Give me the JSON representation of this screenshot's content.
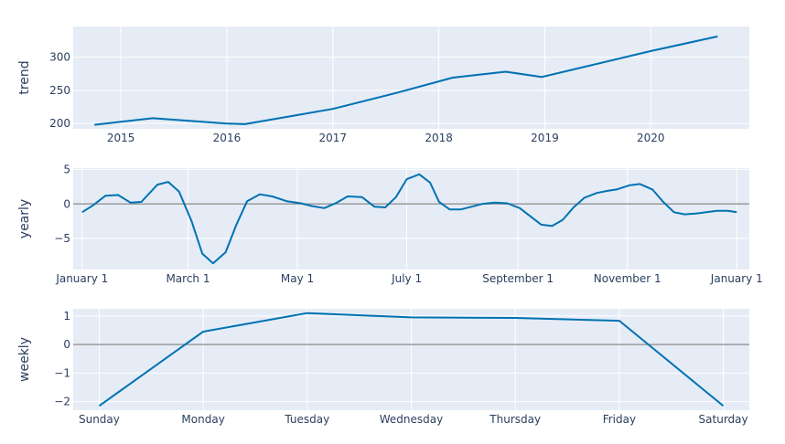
{
  "chart_data": [
    {
      "type": "line",
      "id": "trend",
      "ylabel": "trend",
      "x_kind": "year",
      "xlim": [
        2014.55,
        2020.93
      ],
      "ylim": [
        192,
        346
      ],
      "xticks": [
        2015,
        2016,
        2017,
        2018,
        2019,
        2020
      ],
      "xtick_labels": [
        "2015",
        "2016",
        "2017",
        "2018",
        "2019",
        "2020"
      ],
      "yticks": [
        200,
        250,
        300
      ],
      "ytick_labels": [
        "200",
        "250",
        "300"
      ],
      "zero_line": false,
      "series": [
        {
          "x": [
            2014.75,
            2015.3,
            2016.0,
            2016.17,
            2017.0,
            2017.6,
            2018.13,
            2018.63,
            2018.97,
            2019.5,
            2020.0,
            2020.63
          ],
          "y": [
            198,
            208,
            200,
            199,
            222,
            246,
            269,
            278,
            270,
            290,
            309,
            331
          ],
          "band": 1.5
        }
      ]
    },
    {
      "type": "line",
      "id": "yearly",
      "ylabel": "yearly",
      "x_kind": "day_of_year",
      "xlim": [
        -5,
        372
      ],
      "ylim": [
        -9.5,
        5.2
      ],
      "xticks": [
        0,
        59,
        120,
        181,
        243,
        304,
        365
      ],
      "xtick_labels": [
        "January  1",
        "March  1",
        "May  1",
        "July  1",
        "September  1",
        "November  1",
        "January  1"
      ],
      "yticks": [
        -5,
        0,
        5
      ],
      "ytick_labels": [
        "−5",
        "0",
        "5"
      ],
      "zero_line": true,
      "series": [
        {
          "x": [
            0,
            6,
            13,
            20,
            27,
            33,
            42,
            48,
            54,
            61,
            67,
            73,
            80,
            86,
            92,
            99,
            106,
            114,
            122,
            128,
            135,
            142,
            148,
            156,
            163,
            169,
            175,
            181,
            188,
            194,
            199,
            205,
            211,
            217,
            223,
            230,
            237,
            244,
            250,
            256,
            262,
            268,
            274,
            280,
            287,
            293,
            298,
            305,
            311,
            318,
            324,
            330,
            336,
            342,
            348,
            354,
            360,
            365
          ],
          "y": [
            -1.2,
            -0.2,
            1.2,
            1.3,
            0.2,
            0.3,
            2.8,
            3.2,
            1.8,
            -2.5,
            -7.2,
            -8.6,
            -7.0,
            -3.0,
            0.4,
            1.4,
            1.1,
            0.4,
            0.1,
            -0.3,
            -0.6,
            0.2,
            1.1,
            1.0,
            -0.4,
            -0.5,
            1.0,
            3.6,
            4.3,
            3.1,
            0.3,
            -0.8,
            -0.8,
            -0.4,
            0.0,
            0.2,
            0.1,
            -0.6,
            -1.8,
            -3.0,
            -3.2,
            -2.3,
            -0.5,
            0.9,
            1.6,
            1.9,
            2.1,
            2.7,
            2.9,
            2.1,
            0.3,
            -1.2,
            -1.5,
            -1.4,
            -1.2,
            -1.0,
            -1.0,
            -1.2
          ],
          "band": 0
        }
      ]
    },
    {
      "type": "line",
      "id": "weekly",
      "ylabel": "weekly",
      "x_kind": "weekday",
      "xlim": [
        -0.25,
        6.25
      ],
      "ylim": [
        -2.3,
        1.25
      ],
      "xticks": [
        0,
        1,
        2,
        3,
        4,
        5,
        6
      ],
      "xtick_labels": [
        "Sunday",
        "Monday",
        "Tuesday",
        "Wednesday",
        "Thursday",
        "Friday",
        "Saturday"
      ],
      "yticks": [
        -2,
        -1,
        0,
        1
      ],
      "ytick_labels": [
        "−2",
        "−1",
        "0",
        "1"
      ],
      "zero_line": true,
      "series": [
        {
          "x": [
            0,
            1,
            2,
            3,
            4,
            5,
            6
          ],
          "y": [
            -2.15,
            0.45,
            1.1,
            0.95,
            0.93,
            0.83,
            -2.15
          ],
          "band": 0
        }
      ]
    }
  ]
}
